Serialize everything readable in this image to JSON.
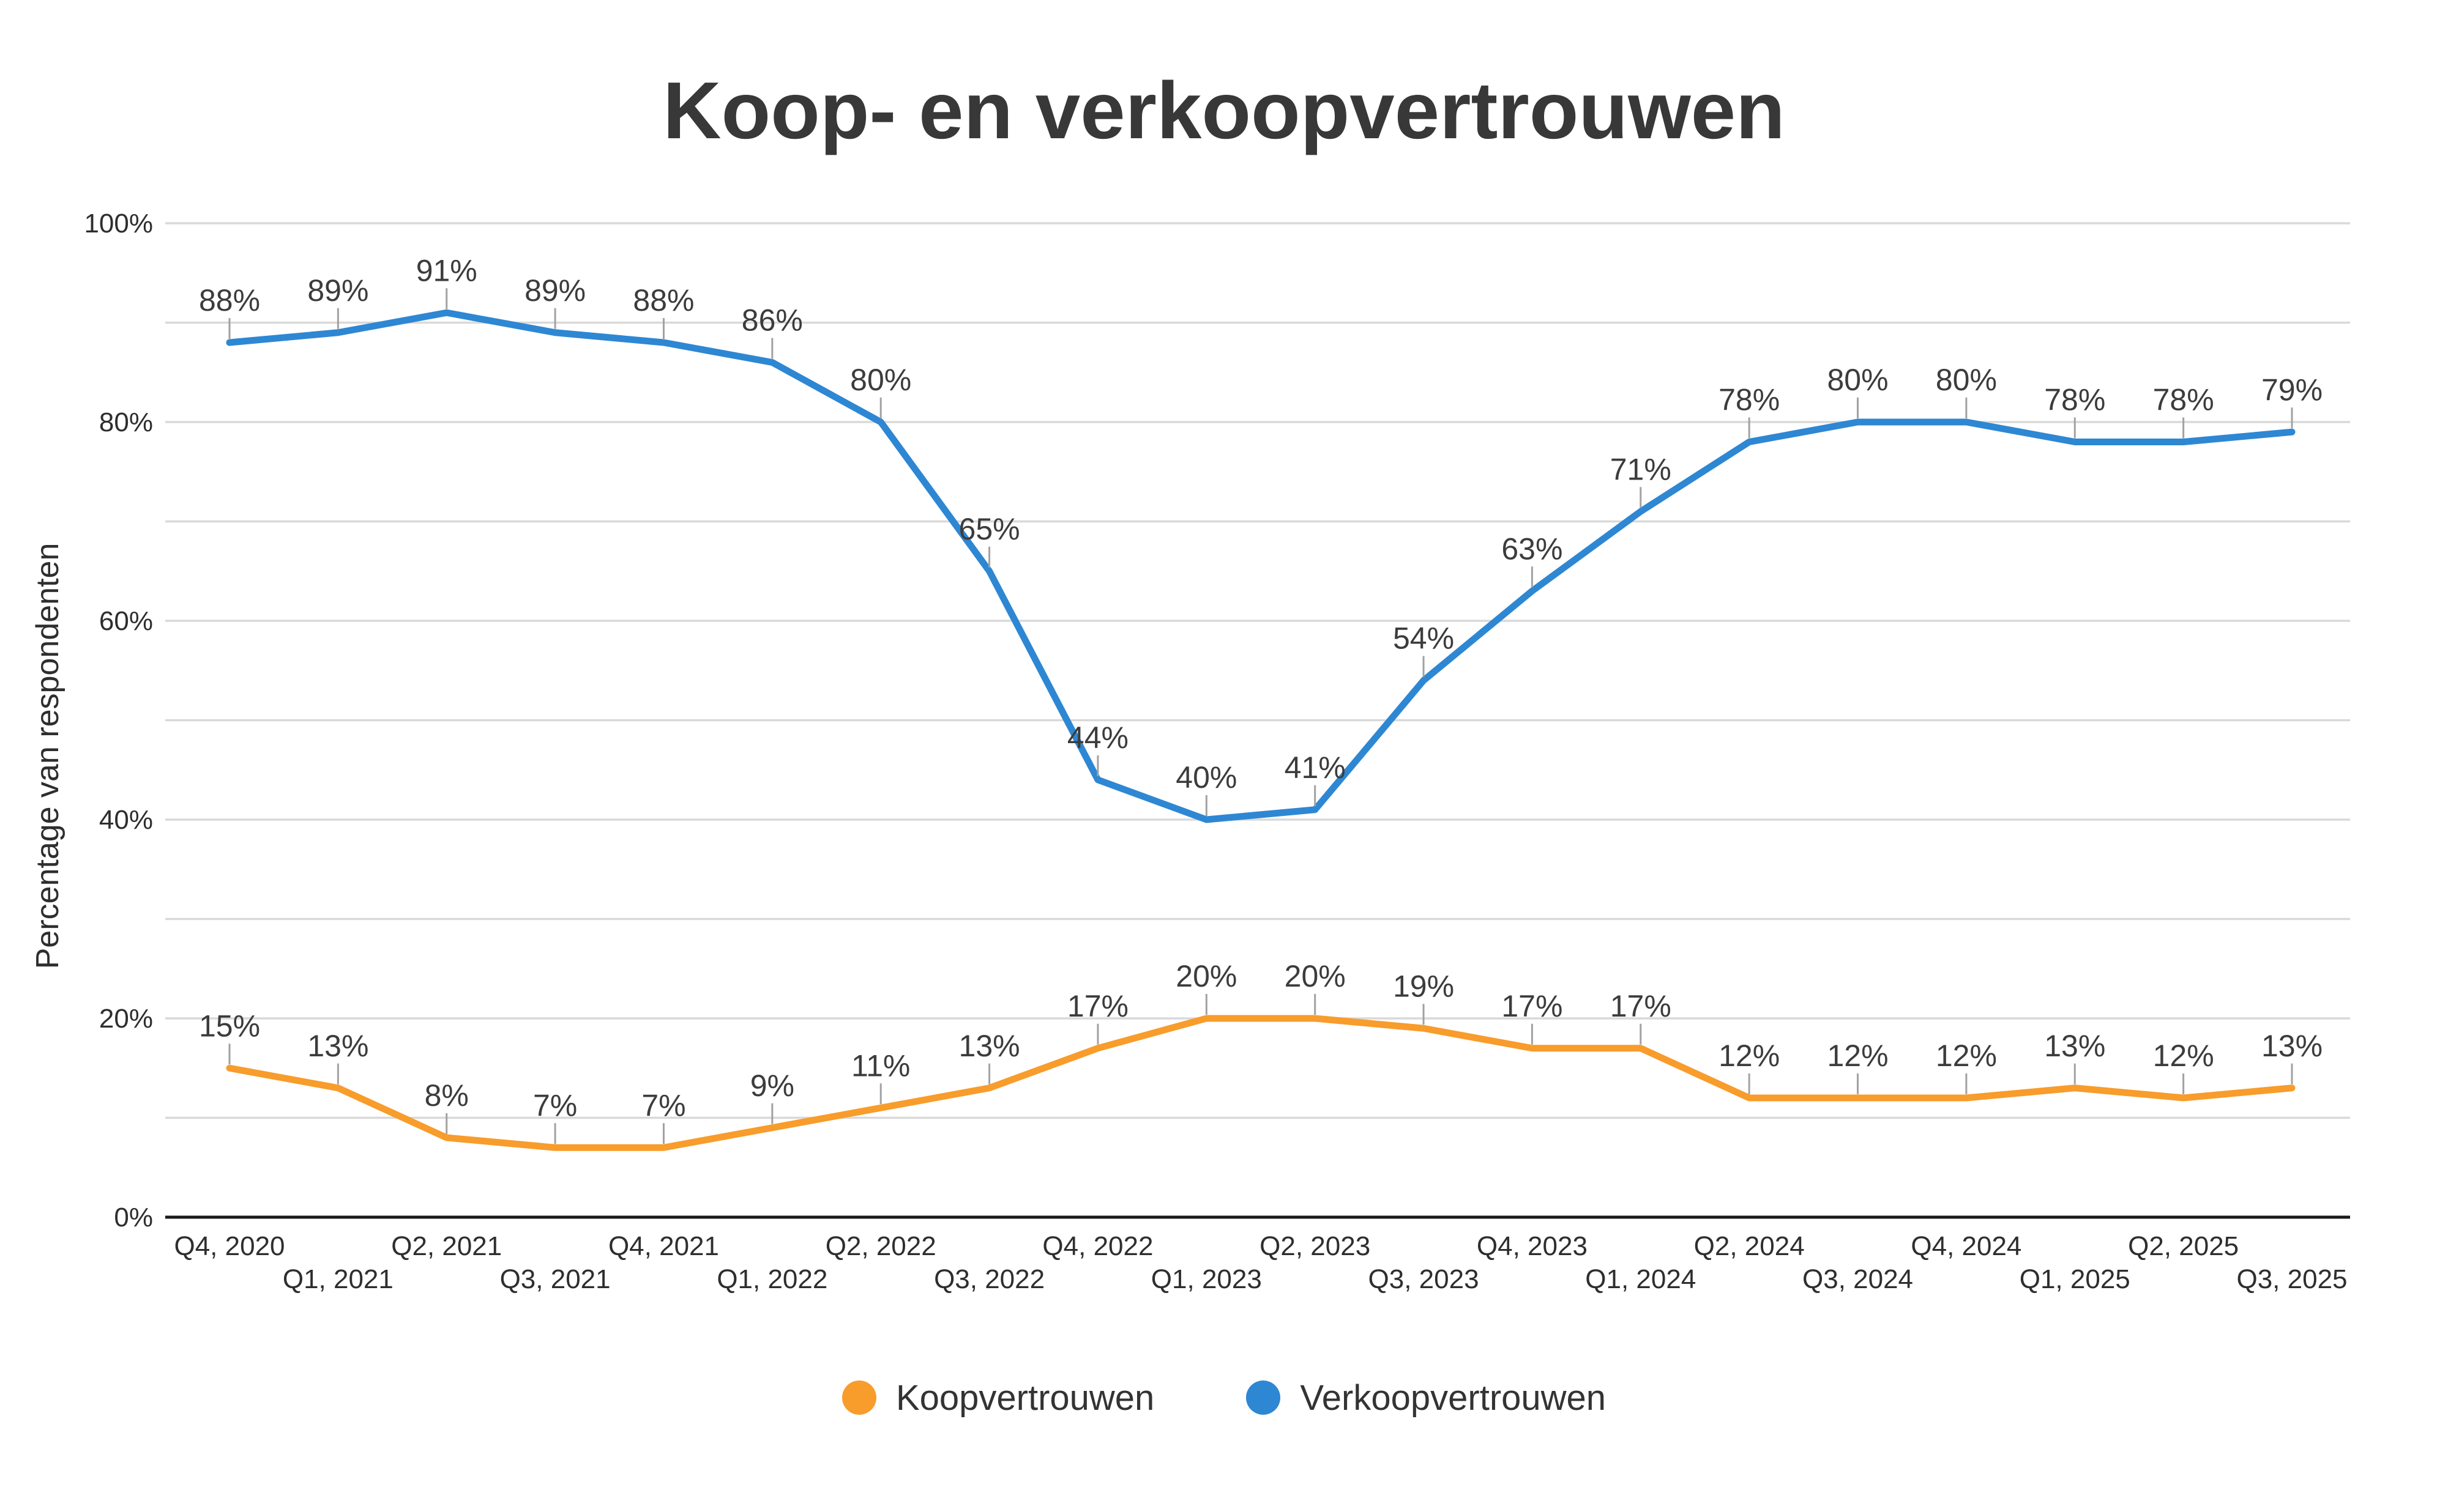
{
  "chart_data": {
    "type": "line",
    "title": "Koop- en verkoopvertrouwen",
    "ylabel": "Percentage van respondenten",
    "xlabel": "",
    "ylim": [
      0,
      100
    ],
    "grid": true,
    "gridline_step": 10,
    "legend_position": "bottom",
    "data_labels": true,
    "data_label_suffix": "%",
    "y_ticks": [
      {
        "value": 0,
        "label": "0%"
      },
      {
        "value": 20,
        "label": "20%"
      },
      {
        "value": 40,
        "label": "40%"
      },
      {
        "value": 60,
        "label": "60%"
      },
      {
        "value": 80,
        "label": "80%"
      },
      {
        "value": 100,
        "label": "100%"
      }
    ],
    "categories": [
      "Q4, 2020",
      "Q1, 2021",
      "Q2, 2021",
      "Q3, 2021",
      "Q4, 2021",
      "Q1, 2022",
      "Q2, 2022",
      "Q3, 2022",
      "Q4, 2022",
      "Q1, 2023",
      "Q2, 2023",
      "Q3, 2023",
      "Q4, 2023",
      "Q1, 2024",
      "Q2, 2024",
      "Q3, 2024",
      "Q4, 2024",
      "Q1, 2025",
      "Q2, 2025",
      "Q3, 2025"
    ],
    "series": [
      {
        "name": "Koopvertrouwen",
        "color": "#F89C2B",
        "values": [
          15,
          13,
          8,
          7,
          7,
          9,
          11,
          13,
          17,
          20,
          20,
          19,
          17,
          17,
          12,
          12,
          12,
          13,
          12,
          13
        ]
      },
      {
        "name": "Verkoopvertrouwen",
        "color": "#2E87D3",
        "values": [
          88,
          89,
          91,
          89,
          88,
          86,
          80,
          65,
          44,
          40,
          41,
          54,
          63,
          71,
          78,
          80,
          80,
          78,
          78,
          79
        ]
      }
    ]
  }
}
